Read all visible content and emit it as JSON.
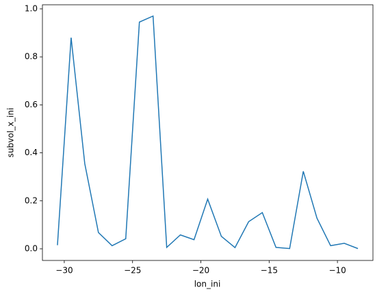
{
  "chart_data": {
    "type": "line",
    "xlabel": "lon_ini",
    "ylabel": "subvol_x_ini",
    "x": [
      -30.5,
      -29.5,
      -28.5,
      -27.5,
      -26.5,
      -25.5,
      -24.5,
      -23.5,
      -22.5,
      -21.5,
      -20.5,
      -19.5,
      -18.5,
      -17.5,
      -16.5,
      -15.5,
      -14.5,
      -13.5,
      -12.5,
      -11.5,
      -10.5,
      -9.5,
      -8.5
    ],
    "series": [
      {
        "color": "#1f77b4",
        "values": [
          0.015,
          0.88,
          0.355,
          0.068,
          0.013,
          0.042,
          0.945,
          0.97,
          0.006,
          0.058,
          0.038,
          0.207,
          0.052,
          0.005,
          0.113,
          0.151,
          0.006,
          0.001,
          0.323,
          0.128,
          0.013,
          0.023,
          0.001
        ]
      }
    ],
    "xlim": [
      -31.6,
      -7.4
    ],
    "xticks": [
      {
        "value": -30,
        "label": "−30"
      },
      {
        "value": -25,
        "label": "−25"
      },
      {
        "value": -20,
        "label": "−20"
      },
      {
        "value": -15,
        "label": "−15"
      },
      {
        "value": -10,
        "label": "−10"
      }
    ],
    "ylim": [
      -0.0485,
      1.017
    ],
    "yticks": [
      {
        "value": 0,
        "label": "0.0"
      },
      0.2,
      0.4,
      0.6,
      0.8,
      {
        "value": 1,
        "label": "1.0"
      }
    ],
    "grid": false
  }
}
